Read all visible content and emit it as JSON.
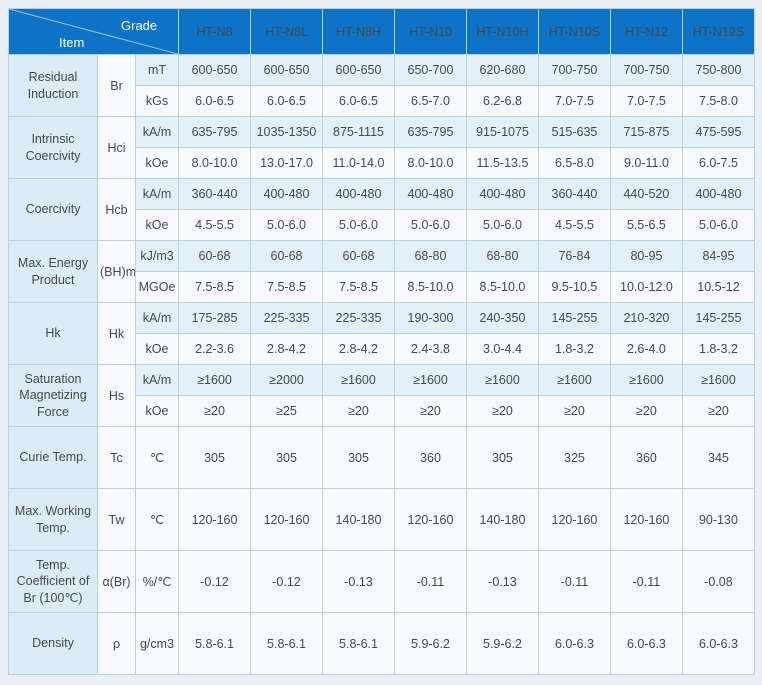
{
  "table": {
    "corner": {
      "top_label": "Grade",
      "bottom_label": "Item"
    },
    "grades": [
      "HT-N8",
      "HT-N8L",
      "HT-N8H",
      "HT-N10",
      "HT-N10H",
      "HT-N10S",
      "HT-N12",
      "HT-N12S"
    ],
    "sections": [
      {
        "item": "Residual Induction",
        "symbol": "Br",
        "rows": [
          {
            "unit": "mT",
            "values": [
              "600-650",
              "600-650",
              "600-650",
              "650-700",
              "620-680",
              "700-750",
              "700-750",
              "750-800"
            ]
          },
          {
            "unit": "kGs",
            "values": [
              "6.0-6.5",
              "6.0-6.5",
              "6.0-6.5",
              "6.5-7.0",
              "6.2-6.8",
              "7.0-7.5",
              "7.0-7.5",
              "7.5-8.0"
            ]
          }
        ]
      },
      {
        "item": "Intrinsic Coercivity",
        "symbol": "Hci",
        "rows": [
          {
            "unit": "kA/m",
            "values": [
              "635-795",
              "1035-1350",
              "875-1115",
              "635-795",
              "915-1075",
              "515-635",
              "715-875",
              "475-595"
            ]
          },
          {
            "unit": "kOe",
            "values": [
              "8.0-10.0",
              "13.0-17.0",
              "11.0-14.0",
              "8.0-10.0",
              "11.5-13.5",
              "6.5-8.0",
              "9.0-11.0",
              "6.0-7.5"
            ]
          }
        ]
      },
      {
        "item": "Coercivity",
        "symbol": "Hcb",
        "rows": [
          {
            "unit": "kA/m",
            "values": [
              "360-440",
              "400-480",
              "400-480",
              "400-480",
              "400-480",
              "360-440",
              "440-520",
              "400-480"
            ]
          },
          {
            "unit": "kOe",
            "values": [
              "4.5-5.5",
              "5.0-6.0",
              "5.0-6.0",
              "5.0-6.0",
              "5.0-6.0",
              "4.5-5.5",
              "5.5-6.5",
              "5.0-6.0"
            ]
          }
        ]
      },
      {
        "item": "Max. Energy Product",
        "symbol": "(BH)m",
        "rows": [
          {
            "unit": "kJ/m3",
            "values": [
              "60-68",
              "60-68",
              "60-68",
              "68-80",
              "68-80",
              "76-84",
              "80-95",
              "84-95"
            ]
          },
          {
            "unit": "MGOe",
            "values": [
              "7.5-8.5",
              "7.5-8.5",
              "7.5-8.5",
              "8.5-10.0",
              "8.5-10.0",
              "9.5-10.5",
              "10.0-12.0",
              "10.5-12"
            ]
          }
        ]
      },
      {
        "item": "Hk",
        "symbol": "Hk",
        "rows": [
          {
            "unit": "kA/m",
            "values": [
              "175-285",
              "225-335",
              "225-335",
              "190-300",
              "240-350",
              "145-255",
              "210-320",
              "145-255"
            ]
          },
          {
            "unit": "kOe",
            "values": [
              "2.2-3.6",
              "2.8-4.2",
              "2.8-4.2",
              "2.4-3.8",
              "3.0-4.4",
              "1.8-3.2",
              "2.6-4.0",
              "1.8-3.2"
            ]
          }
        ]
      },
      {
        "item": "Saturation Magnetizing Force",
        "symbol": "Hs",
        "rows": [
          {
            "unit": "kA/m",
            "values": [
              "≥1600",
              "≥2000",
              "≥1600",
              "≥1600",
              "≥1600",
              "≥1600",
              "≥1600",
              "≥1600"
            ]
          },
          {
            "unit": "kOe",
            "values": [
              "≥20",
              "≥25",
              "≥20",
              "≥20",
              "≥20",
              "≥20",
              "≥20",
              "≥20"
            ]
          }
        ]
      },
      {
        "item": "Curie Temp.",
        "symbol": "Tc",
        "rows": [
          {
            "unit": "℃",
            "values": [
              "305",
              "305",
              "305",
              "360",
              "305",
              "325",
              "360",
              "345"
            ]
          }
        ]
      },
      {
        "item": "Max. Working Temp.",
        "symbol": "Tw",
        "rows": [
          {
            "unit": "℃",
            "values": [
              "120-160",
              "120-160",
              "140-180",
              "120-160",
              "140-180",
              "120-160",
              "120-160",
              "90-130"
            ]
          }
        ]
      },
      {
        "item": "Temp. Coefficient of Br (100℃)",
        "symbol": "α(Br)",
        "rows": [
          {
            "unit": "%/℃",
            "values": [
              "-0.12",
              "-0.12",
              "-0.13",
              "-0.11",
              "-0.13",
              "-0.11",
              "-0.11",
              "-0.08"
            ]
          }
        ]
      },
      {
        "item": "Density",
        "symbol": "ρ",
        "rows": [
          {
            "unit": "g/cm3",
            "values": [
              "5.8-6.1",
              "5.8-6.1",
              "5.8-6.1",
              "5.9-6.2",
              "5.9-6.2",
              "6.0-6.3",
              "6.0-6.3",
              "6.0-6.3"
            ]
          }
        ]
      }
    ]
  },
  "colors": {
    "header_blue": "#0d73c6",
    "tint_row": "#e3f0f9",
    "plain_row": "#f8fafc",
    "item_cell": "#dcecf7",
    "border": "#b9d2e2",
    "page_bg": "#e9eff5"
  }
}
